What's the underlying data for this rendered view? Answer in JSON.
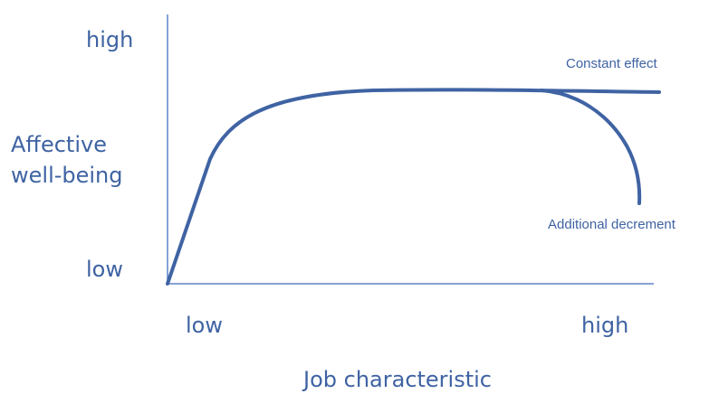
{
  "diagram": {
    "y_axis": {
      "title_line1": "Affective",
      "title_line2": "well-being",
      "high_label": "high",
      "low_label": "low"
    },
    "x_axis": {
      "title": "Job characteristic",
      "low_label": "low",
      "high_label": "high"
    },
    "curves": [
      {
        "label": "Constant effect"
      },
      {
        "label": "Additional decrement"
      }
    ],
    "line_color": "#3f63a3",
    "axis_color": "#5e84c7"
  }
}
